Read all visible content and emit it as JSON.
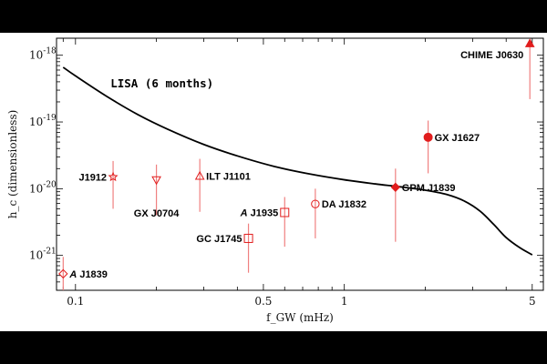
{
  "chart_data": {
    "type": "scatter",
    "title": "",
    "xlabel": "f_GW (mHz)",
    "ylabel": "h_c (dimensionless)",
    "xscale": "log",
    "yscale": "log",
    "xlim": [
      0.085,
      5.5
    ],
    "ylim": [
      3e-22,
      1.8e-18
    ],
    "x_ticks": [
      {
        "value": 0.1,
        "label": "0.1"
      },
      {
        "value": 0.5,
        "label": "0.5"
      },
      {
        "value": 1,
        "label": "1"
      },
      {
        "value": 5,
        "label": "5"
      }
    ],
    "y_ticks": [
      {
        "value": 1e-21,
        "mant": "10",
        "exp": "-21"
      },
      {
        "value": 1e-20,
        "mant": "10",
        "exp": "-20"
      },
      {
        "value": 1e-19,
        "mant": "10",
        "exp": "-19"
      },
      {
        "value": 1e-18,
        "mant": "10",
        "exp": "-18"
      }
    ],
    "sensitivity_curve": {
      "label": "LISA (6 months)",
      "color": "#000000",
      "x": [
        0.09,
        0.1,
        0.13,
        0.17,
        0.22,
        0.3,
        0.4,
        0.55,
        0.75,
        1.0,
        1.3,
        1.6,
        2.0,
        2.4,
        2.8,
        3.2,
        3.6,
        4.0,
        4.5,
        5.0
      ],
      "y": [
        6.6e-19,
        4.9e-19,
        2.45e-19,
        1.3e-19,
        7.8e-20,
        4.6e-20,
        3.1e-20,
        2.15e-20,
        1.65e-20,
        1.36e-20,
        1.18e-20,
        1.07e-20,
        9.5e-21,
        8.2e-21,
        6.5e-21,
        4.6e-21,
        2.9e-21,
        1.85e-21,
        1.3e-21,
        1.02e-21
      ]
    },
    "sources": [
      {
        "name": "A J1839",
        "prefix": "A",
        "label": " J1839",
        "x": 0.09,
        "y": 5.3e-22,
        "err_low": 3e-22,
        "err_high": 9.5e-22,
        "marker": "diamond-open",
        "label_pos": "right"
      },
      {
        "name": "J1912",
        "prefix": "",
        "label": "J1912",
        "x": 0.138,
        "y": 1.5e-20,
        "err_low": 5e-21,
        "err_high": 2.6e-20,
        "marker": "star-open",
        "label_pos": "left"
      },
      {
        "name": "GX J0704",
        "prefix": "",
        "label": "GX J0704",
        "x": 0.2,
        "y": 1.35e-20,
        "err_low": 4e-21,
        "err_high": 2.3e-20,
        "marker": "triangle-down-open",
        "label_pos": "below"
      },
      {
        "name": "ILT J1101",
        "prefix": "",
        "label": "ILT J1101",
        "x": 0.29,
        "y": 1.55e-20,
        "err_low": 4.5e-21,
        "err_high": 2.8e-20,
        "marker": "triangle-up-open",
        "label_pos": "right"
      },
      {
        "name": "GC J1745",
        "prefix": "",
        "label": "GC J1745",
        "x": 0.44,
        "y": 1.8e-21,
        "err_low": 5.5e-22,
        "err_high": 3e-21,
        "marker": "square-open",
        "label_pos": "left"
      },
      {
        "name": "A J1935",
        "prefix": "A",
        "label": " J1935",
        "x": 0.6,
        "y": 4.4e-21,
        "err_low": 1.35e-21,
        "err_high": 7.5e-21,
        "marker": "square-open",
        "label_pos": "left"
      },
      {
        "name": "DA J1832",
        "prefix": "",
        "label": "DA J1832",
        "x": 0.78,
        "y": 5.9e-21,
        "err_low": 1.8e-21,
        "err_high": 1e-20,
        "marker": "circle-open",
        "label_pos": "right"
      },
      {
        "name": "GPM J1839",
        "prefix": "",
        "label": "GPM J1839",
        "x": 1.55,
        "y": 1.05e-20,
        "err_low": 1.6e-21,
        "err_high": 2e-20,
        "marker": "diamond-filled",
        "label_pos": "right"
      },
      {
        "name": "GX J1627",
        "prefix": "",
        "label": "GX J1627",
        "x": 2.05,
        "y": 5.9e-20,
        "err_low": 1.7e-20,
        "err_high": 1.05e-19,
        "marker": "circle-filled",
        "label_pos": "right"
      },
      {
        "name": "CHIME J0630",
        "prefix": "",
        "label": "CHIME J0630",
        "x": 4.9,
        "y": 1.5e-18,
        "err_low": 2.2e-19,
        "err_high": 1.5e-18,
        "marker": "triangle-up-filled",
        "label_pos": "left"
      }
    ],
    "marker_color": "#e11d1d",
    "error_color": "#f08080",
    "grid": false,
    "legend": "none"
  }
}
